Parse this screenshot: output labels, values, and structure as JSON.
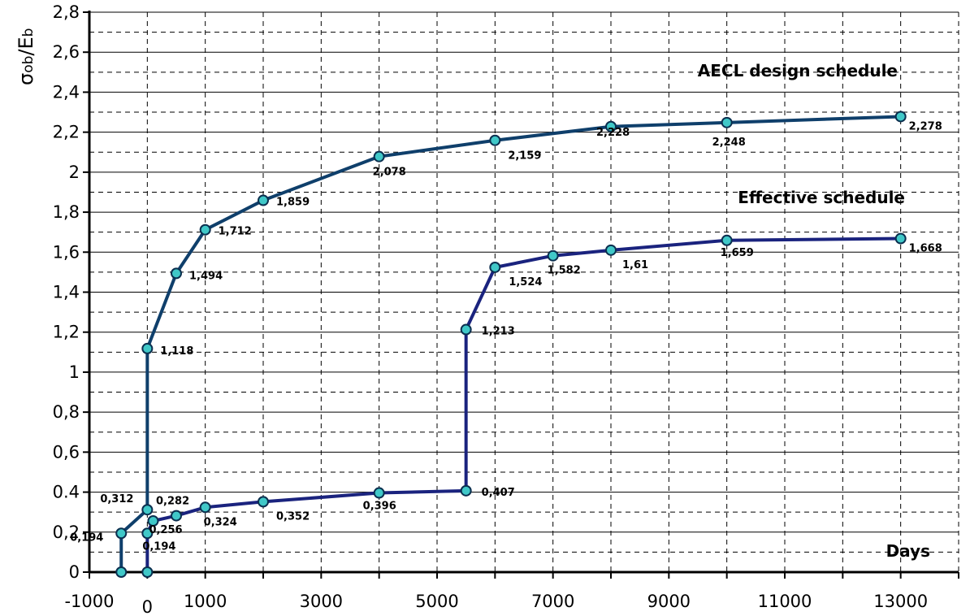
{
  "chart_data": {
    "type": "line",
    "title": "",
    "xlabel": "Days",
    "ylabel": "σob/Eb",
    "ylabel_parts": [
      "σ",
      "ob",
      "/E",
      "b"
    ],
    "xlim": [
      -1000,
      14000
    ],
    "ylim": [
      0,
      2.8
    ],
    "x_ticks": [
      -1000,
      1000,
      3000,
      5000,
      7000,
      9000,
      11000,
      13000
    ],
    "x_ticks_text": [
      "-1000",
      "1000",
      "3000",
      "5000",
      "7000",
      "9000",
      "11000",
      "13000"
    ],
    "x_extra_tick": {
      "value": 0,
      "text": "0"
    },
    "y_ticks": [
      0,
      0.2,
      0.4,
      0.6,
      0.8,
      1,
      1.2,
      1.4,
      1.6,
      1.8,
      2,
      2.2,
      2.4,
      2.6,
      2.8
    ],
    "y_ticks_text": [
      "0",
      "0,2",
      "0.4",
      "0,6",
      "0,8",
      "1",
      "1,2",
      "1,4",
      "1,6",
      "1,8",
      "2",
      "2,2",
      "2,4",
      "2,6",
      "2,8"
    ],
    "grid": true,
    "colors": {
      "aecl_line": "#0f3f6b",
      "effective_line": "#1a237e",
      "marker_fill": "#40c8c8",
      "marker_stroke": "#0b2f4f",
      "grid": "#000000",
      "axis": "#000000"
    },
    "series": [
      {
        "name": "AECL design schedule",
        "x": [
          -450,
          0,
          0,
          500,
          1000,
          2000,
          4000,
          6000,
          8000,
          10000,
          13000
        ],
        "y": [
          0.194,
          0.312,
          1.118,
          1.494,
          1.712,
          1.859,
          2.078,
          2.159,
          2.228,
          2.248,
          2.278
        ],
        "labels": [
          "0,194",
          "0,312",
          "1,118",
          "1,494",
          "1,712",
          "1,859",
          "2,078",
          "2,159",
          "2,228",
          "2,248",
          "2,278"
        ]
      },
      {
        "name": "Effective schedule",
        "x": [
          0,
          100,
          500,
          1000,
          2000,
          4000,
          5500,
          5500,
          6000,
          7000,
          8000,
          10000,
          13000
        ],
        "y": [
          0.194,
          0.256,
          0.282,
          0.324,
          0.352,
          0.396,
          0.407,
          1.213,
          1.524,
          1.582,
          1.61,
          1.659,
          1.668
        ],
        "labels": [
          "0,194",
          "0,256",
          "0,282",
          "0,324",
          "0,352",
          "0,396",
          "0,407",
          "1,213",
          "1,524",
          "1,582",
          "1,61",
          "1,659",
          "1,668"
        ]
      }
    ],
    "start_markers": [
      {
        "x": -450,
        "y": 0
      },
      {
        "x": 0,
        "y": 0
      }
    ]
  }
}
